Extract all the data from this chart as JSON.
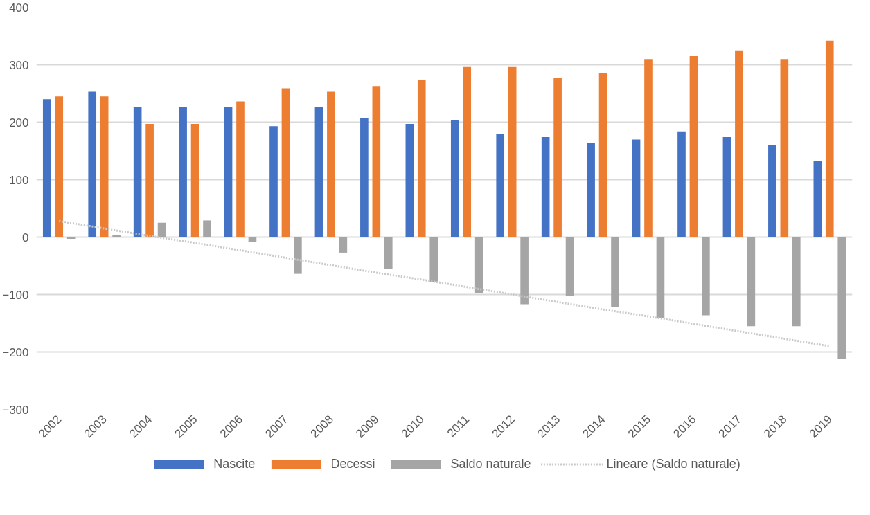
{
  "chart_data": {
    "type": "bar",
    "categories": [
      "2002",
      "2003",
      "2004",
      "2005",
      "2006",
      "2007",
      "2008",
      "2009",
      "2010",
      "2011",
      "2012",
      "2013",
      "2014",
      "2015",
      "2016",
      "2017",
      "2018",
      "2019"
    ],
    "series": [
      {
        "name": "Nascite",
        "color": "#4472c4",
        "values": [
          240,
          253,
          226,
          226,
          226,
          193,
          226,
          207,
          197,
          203,
          179,
          174,
          164,
          170,
          184,
          174,
          160,
          132
        ]
      },
      {
        "name": "Decessi",
        "color": "#ed7d31",
        "values": [
          245,
          245,
          197,
          197,
          236,
          259,
          253,
          263,
          273,
          296,
          296,
          277,
          286,
          310,
          315,
          325,
          310,
          342
        ]
      },
      {
        "name": "Saldo naturale",
        "color": "#a5a5a5",
        "values": [
          -3,
          4,
          25,
          29,
          -8,
          -64,
          -27,
          -55,
          -78,
          -97,
          -117,
          -102,
          -121,
          -141,
          -136,
          -155,
          -155,
          -212
        ]
      },
      {
        "name": "Lineare (Saldo naturale)",
        "type": "line",
        "line_style": "dotted",
        "color": "#c9c9c9",
        "values": [
          28,
          15,
          2,
          -10,
          -23,
          -36,
          -49,
          -62,
          -74,
          -87,
          -100,
          -113,
          -126,
          -138,
          -151,
          -164,
          -177,
          -190
        ]
      }
    ],
    "ylim": [
      -300,
      400
    ],
    "yticks": [
      -300,
      -200,
      -100,
      0,
      100,
      200,
      300,
      400
    ],
    "grid": "y",
    "legend": "bottom"
  }
}
